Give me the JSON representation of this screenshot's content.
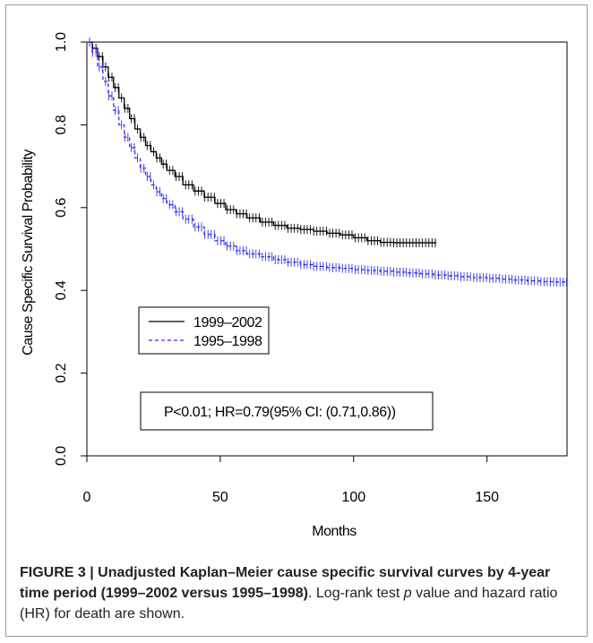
{
  "chart_data": {
    "type": "line",
    "subtype": "kaplan-meier step curves with censor marks",
    "xlabel": "Months",
    "ylabel": "Cause Specific Survival Probability",
    "xlim": [
      0,
      180
    ],
    "ylim": [
      0,
      1.0
    ],
    "xticks": [
      0,
      50,
      100,
      150
    ],
    "xtick_labels": [
      "0",
      "50",
      "100",
      "150"
    ],
    "yticks": [
      0.0,
      0.2,
      0.4,
      0.6,
      0.8,
      1.0
    ],
    "ytick_labels": [
      "0.0",
      "0.2",
      "0.4",
      "0.6",
      "0.8",
      "1.0"
    ],
    "grid": false,
    "legend_position": "middle-left",
    "annotation": "P<0.01; HR=0.79(95% CI: (0.71,0.86))",
    "series": [
      {
        "name": "1999–2002",
        "color": "#000000",
        "line_style": "solid",
        "x": [
          0,
          2,
          4,
          6,
          8,
          10,
          12,
          14,
          16,
          18,
          20,
          22,
          24,
          26,
          28,
          30,
          33,
          36,
          40,
          44,
          48,
          52,
          56,
          60,
          65,
          70,
          75,
          80,
          85,
          90,
          95,
          100,
          105,
          110,
          115,
          120,
          125,
          131
        ],
        "y": [
          1.0,
          0.985,
          0.965,
          0.94,
          0.915,
          0.89,
          0.865,
          0.84,
          0.815,
          0.79,
          0.77,
          0.75,
          0.735,
          0.72,
          0.705,
          0.69,
          0.675,
          0.655,
          0.64,
          0.625,
          0.61,
          0.595,
          0.585,
          0.575,
          0.565,
          0.557,
          0.55,
          0.547,
          0.543,
          0.538,
          0.534,
          0.527,
          0.52,
          0.516,
          0.515,
          0.515,
          0.515,
          0.515
        ]
      },
      {
        "name": "1995–1998",
        "color": "#3333ee",
        "line_style": "dashed",
        "x": [
          0,
          2,
          4,
          6,
          8,
          10,
          12,
          14,
          16,
          18,
          20,
          22,
          24,
          26,
          28,
          30,
          33,
          36,
          40,
          44,
          48,
          52,
          56,
          60,
          65,
          70,
          75,
          80,
          85,
          90,
          95,
          100,
          105,
          110,
          115,
          120,
          125,
          130,
          135,
          140,
          145,
          150,
          155,
          160,
          165,
          170,
          175,
          180
        ],
        "y": [
          1.0,
          0.975,
          0.94,
          0.905,
          0.87,
          0.835,
          0.8,
          0.77,
          0.745,
          0.72,
          0.695,
          0.675,
          0.655,
          0.638,
          0.622,
          0.607,
          0.59,
          0.572,
          0.553,
          0.535,
          0.52,
          0.507,
          0.496,
          0.488,
          0.481,
          0.474,
          0.468,
          0.462,
          0.458,
          0.455,
          0.453,
          0.45,
          0.448,
          0.446,
          0.444,
          0.442,
          0.44,
          0.437,
          0.435,
          0.433,
          0.431,
          0.429,
          0.427,
          0.425,
          0.423,
          0.421,
          0.42,
          0.419
        ]
      }
    ]
  },
  "caption": {
    "bold": "FIGURE 3 | Unadjusted Kaplan–Meier cause specific survival curves by 4-year time period (1999–2002 versus 1995–1998)",
    "text_before_italic": ". Log-rank test ",
    "italic": "p",
    "text_after_italic": " value and hazard ratio (HR) for death are shown."
  }
}
